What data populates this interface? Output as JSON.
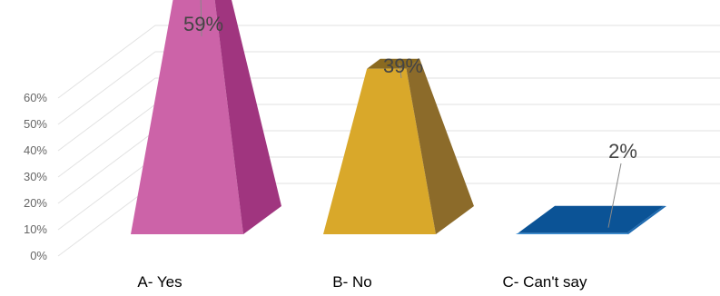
{
  "chart_data": {
    "type": "bar",
    "shape": "3d-pyramid",
    "categories": [
      "A- Yes",
      "B- No",
      "C- Can't say"
    ],
    "values": [
      59,
      39,
      2
    ],
    "data_labels": [
      "59%",
      "39%",
      "2%"
    ],
    "ylim": [
      0,
      60
    ],
    "yticks": [
      "0%",
      "10%",
      "20%",
      "30%",
      "40%",
      "50%",
      "60%"
    ],
    "grid": true,
    "title": "",
    "xlabel": "",
    "ylabel": "",
    "colors": [
      {
        "front": "#CC63A8",
        "side": "#A0357F",
        "top": "#CC63A8"
      },
      {
        "front": "#D9A82A",
        "side": "#8C6B2A",
        "top": "#8A6A20"
      },
      {
        "front": "#3E90D4",
        "side": "#1E6AB0",
        "top": "#0B5396"
      }
    ],
    "grid_color": "#E2E2E2"
  }
}
